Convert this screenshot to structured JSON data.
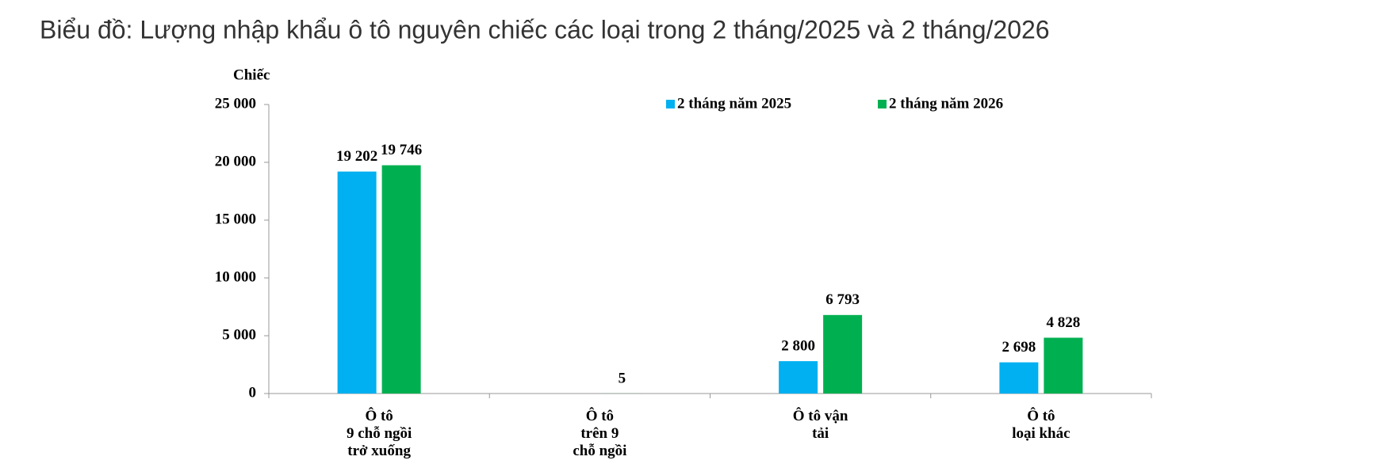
{
  "chart_data": {
    "type": "bar",
    "title": "Biểu đồ: Lượng nhập khẩu ô tô nguyên chiếc các loại trong 2 tháng/2025 và 2 tháng/2026",
    "y_label": "Chiếc",
    "categories": [
      [
        "Ô tô",
        "9 chỗ ngồi",
        "trở xuống"
      ],
      [
        "Ô tô",
        "trên 9",
        "chỗ ngồi"
      ],
      [
        "Ô tô vận",
        "tải"
      ],
      [
        "Ô tô",
        "loại khác"
      ]
    ],
    "series": [
      {
        "name": "2 tháng năm 2025",
        "color": "#00b0f0",
        "values": [
          19202,
          null,
          2800,
          2698
        ],
        "value_labels": [
          "19 202",
          null,
          "2 800",
          "2 698"
        ]
      },
      {
        "name": "2 tháng năm 2026",
        "color": "#00b050",
        "values": [
          19746,
          5,
          6793,
          4828
        ],
        "value_labels": [
          "19 746",
          "5",
          "6 793",
          "4 828"
        ]
      }
    ],
    "ylim": [
      0,
      25000
    ],
    "yticks": [
      0,
      {
        "value": 5000,
        "label": "5 000"
      },
      {
        "value": 10000,
        "label": "10 000"
      },
      {
        "value": 15000,
        "label": "15 000"
      },
      {
        "value": 20000,
        "label": "20 000"
      },
      {
        "value": 25000,
        "label": "25 000"
      }
    ],
    "legend": "top"
  }
}
